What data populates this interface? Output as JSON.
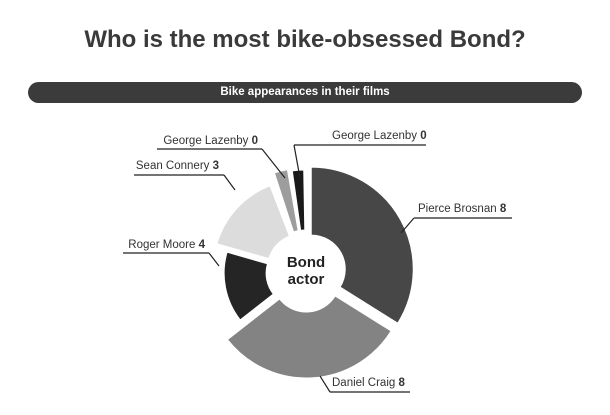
{
  "title": "Who is the most bike-obsessed Bond?",
  "subtitle": "Bike appearances in their films",
  "chart_data": {
    "type": "pie",
    "title": "Who is the most bike-obsessed Bond?",
    "subtitle": "Bike appearances in their films",
    "center_label": [
      "Bond",
      "actor"
    ],
    "slices": [
      {
        "label": "Pierce Brosnan",
        "value": 8,
        "color": "#474747"
      },
      {
        "label": "Daniel Craig",
        "value": 8,
        "color": "#838383"
      },
      {
        "label": "Roger Moore",
        "value": 4,
        "color": "#252525"
      },
      {
        "label": "Sean Connery",
        "value": 3,
        "color": "#dcdcdc"
      },
      {
        "label": "George Lazenby",
        "value": 0,
        "color": "#9d9d9d"
      },
      {
        "label": "George Lazenby",
        "value": 0,
        "color": "#1a1a1a"
      }
    ]
  }
}
